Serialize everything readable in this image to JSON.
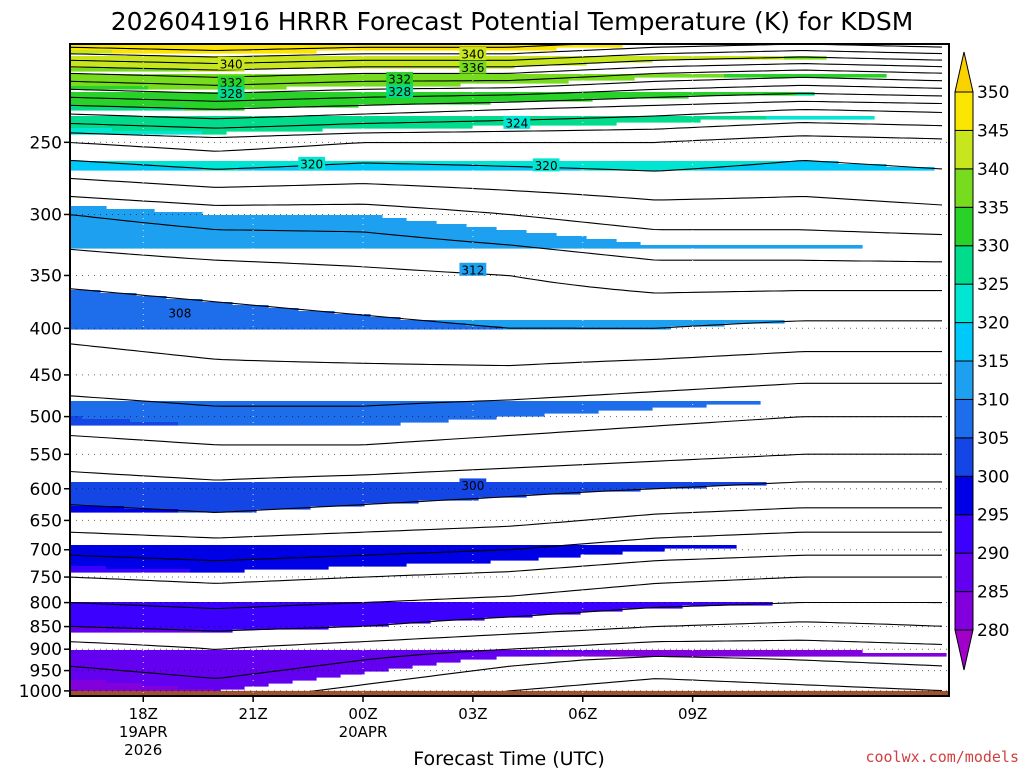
{
  "chart_data": {
    "type": "heatmap",
    "title": "2026041916 HRRR Forecast Potential Temperature (K) for KDSM",
    "xlabel": "Forecast Time (UTC)",
    "credit": "coolwx.com/models",
    "y_axis": {
      "scale": "log",
      "reversed": true,
      "ylim": [
        1013,
        195
      ],
      "ticks": [
        250,
        300,
        350,
        400,
        450,
        500,
        550,
        600,
        650,
        700,
        750,
        800,
        850,
        900,
        950,
        1000
      ],
      "tick_labels": [
        "250",
        "300",
        "350",
        "400",
        "450",
        "500",
        "550",
        "600",
        "650",
        "700",
        "750",
        "800",
        "850",
        "900",
        "950",
        "1000"
      ]
    },
    "x_axis": {
      "unit": "forecast hour from 2026-04-19 16Z",
      "xlim": [
        16,
        40
      ],
      "ticks": [
        {
          "hour": 18,
          "lines": [
            "18Z",
            "19APR",
            "2026"
          ]
        },
        {
          "hour": 21,
          "lines": [
            "21Z"
          ]
        },
        {
          "hour": 24,
          "lines": [
            "00Z",
            "20APR"
          ]
        },
        {
          "hour": 27,
          "lines": [
            "03Z"
          ]
        },
        {
          "hour": 30,
          "lines": [
            "06Z"
          ]
        },
        {
          "hour": 33,
          "lines": [
            "09Z"
          ]
        }
      ]
    },
    "grid": true,
    "surface_fill_color": "#a0522d",
    "colorbar": {
      "levels": [
        280,
        285,
        290,
        295,
        300,
        305,
        310,
        315,
        320,
        325,
        330,
        335,
        340,
        345,
        350
      ],
      "labels": [
        "280",
        "285",
        "290",
        "295",
        "300",
        "305",
        "310",
        "315",
        "320",
        "325",
        "330",
        "335",
        "340",
        "345",
        "350"
      ],
      "colors": [
        "#a000c8",
        "#8200dc",
        "#6400f0",
        "#3c00ff",
        "#0000e6",
        "#1446e6",
        "#1e6eeb",
        "#1ea0f0",
        "#00c8f8",
        "#00e6d2",
        "#00dc8c",
        "#28d228",
        "#78dc1e",
        "#c8e61e",
        "#fae600",
        "#fad200"
      ],
      "extend": "both"
    },
    "contour_interval": 2,
    "contour_labels": [
      {
        "value": "340",
        "hour": 20.4,
        "pressure": 205
      },
      {
        "value": "332",
        "hour": 20.4,
        "pressure": 215
      },
      {
        "value": "328",
        "hour": 20.4,
        "pressure": 221
      },
      {
        "value": "320",
        "hour": 22.6,
        "pressure": 264
      },
      {
        "value": "308",
        "hour": 19.0,
        "pressure": 385
      },
      {
        "value": "332",
        "hour": 25.0,
        "pressure": 213
      },
      {
        "value": "328",
        "hour": 25.0,
        "pressure": 220
      },
      {
        "value": "340",
        "hour": 27.0,
        "pressure": 200
      },
      {
        "value": "336",
        "hour": 27.0,
        "pressure": 207
      },
      {
        "value": "324",
        "hour": 28.2,
        "pressure": 238
      },
      {
        "value": "320",
        "hour": 29.0,
        "pressure": 265
      },
      {
        "value": "312",
        "hour": 27.0,
        "pressure": 345
      },
      {
        "value": "300",
        "hour": 27.0,
        "pressure": 595
      }
    ],
    "theta_profile_pressures": [
      1000,
      925,
      900,
      850,
      800,
      750,
      700,
      650,
      600,
      550,
      500,
      450,
      400,
      350,
      300,
      250,
      230,
      210,
      195
    ],
    "theta_profiles": [
      {
        "hour": 16,
        "theta": [
          284,
          286.5,
          287,
          290,
          292,
          294,
          296.5,
          299,
          301,
          303,
          305,
          307,
          308.5,
          310.5,
          314,
          322,
          329,
          338,
          347
        ]
      },
      {
        "hour": 20,
        "theta": [
          285,
          287.5,
          288,
          290.5,
          292.5,
          294.5,
          297,
          299.5,
          301.5,
          303.5,
          305.5,
          307.5,
          309,
          311,
          315,
          323,
          330,
          339,
          348
        ]
      },
      {
        "hour": 24,
        "theta": [
          283.5,
          286,
          287,
          290,
          292,
          294,
          296.5,
          299,
          301,
          303.5,
          305.5,
          307.5,
          309.5,
          311.5,
          315,
          322,
          329,
          338,
          347
        ]
      },
      {
        "hour": 28,
        "theta": [
          282,
          284.5,
          286,
          289,
          291.5,
          293.5,
          296,
          298.5,
          300.5,
          303,
          305,
          307.5,
          310,
          312,
          316,
          322,
          328,
          338,
          347
        ]
      },
      {
        "hour": 32,
        "theta": [
          281,
          283.5,
          285,
          288,
          290.5,
          292.5,
          295,
          297.5,
          300,
          302.5,
          304.5,
          307,
          310,
          313,
          317,
          322,
          327,
          336,
          345
        ]
      },
      {
        "hour": 36,
        "theta": [
          281.5,
          284,
          285,
          287.5,
          290,
          292,
          294.5,
          297,
          299.5,
          302,
          304,
          306.5,
          309.5,
          313,
          317,
          321,
          326,
          335,
          344
        ]
      },
      {
        "hour": 40,
        "theta": [
          282,
          284.5,
          285.5,
          288,
          290,
          292,
          294.5,
          297,
          299.5,
          302,
          304,
          306.5,
          309.5,
          313,
          317.5,
          321.5,
          326.5,
          336,
          345
        ]
      }
    ]
  }
}
